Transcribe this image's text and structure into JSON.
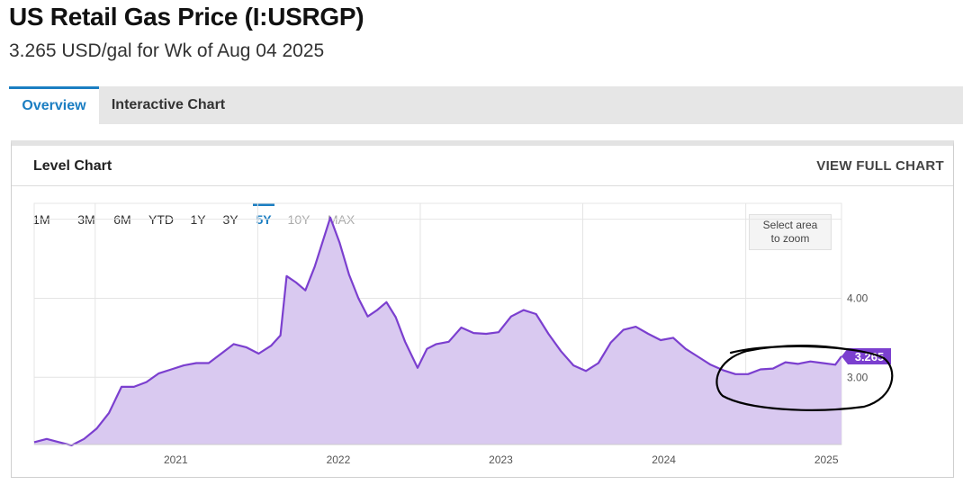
{
  "header": {
    "title": "US Retail Gas Price (I:USRGP)",
    "subtitle": "3.265 USD/gal for Wk of Aug 04 2025"
  },
  "tabs": [
    {
      "label": "Overview",
      "active": true
    },
    {
      "label": "Interactive Chart",
      "active": false
    }
  ],
  "card": {
    "title": "Level Chart",
    "full_chart_label": "VIEW FULL CHART"
  },
  "ranges": [
    {
      "label": "1M",
      "state": "normal"
    },
    {
      "label": "3M",
      "state": "normal"
    },
    {
      "label": "6M",
      "state": "normal"
    },
    {
      "label": "YTD",
      "state": "normal"
    },
    {
      "label": "1Y",
      "state": "normal"
    },
    {
      "label": "3Y",
      "state": "normal"
    },
    {
      "label": "5Y",
      "state": "active"
    },
    {
      "label": "10Y",
      "state": "disabled"
    },
    {
      "label": "MAX",
      "state": "disabled"
    }
  ],
  "zoom_hint": {
    "line1": "Select area",
    "line2": "to zoom"
  },
  "colors": {
    "accent": "#1b7ec2",
    "series_line": "#7b3fcf",
    "series_fill": "#d9c9f0",
    "badge": "#7b3fcf",
    "annotation": "#000000"
  },
  "chart_data": {
    "type": "area",
    "title": "",
    "xlabel": "",
    "ylabel": "",
    "x_ticks": [
      "2021",
      "2022",
      "2023",
      "2024",
      "2025"
    ],
    "y_ticks": [
      {
        "label": "4.00",
        "value": 4.0
      },
      {
        "label": "3.00",
        "value": 3.0
      }
    ],
    "xlim": [
      "2020-08-17",
      "2025-08-04"
    ],
    "ylim": [
      2.15,
      5.2
    ],
    "grid": true,
    "last_value_label": "3.265",
    "series": [
      {
        "x": [
          "2020-08-17",
          "2020-09-14",
          "2020-10-12",
          "2020-11-09",
          "2020-12-07",
          "2021-01-04",
          "2021-02-01",
          "2021-03-01",
          "2021-03-29",
          "2021-04-26",
          "2021-05-24",
          "2021-06-21",
          "2021-07-19",
          "2021-08-16",
          "2021-09-13",
          "2021-10-11",
          "2021-11-08",
          "2021-12-06",
          "2022-01-03",
          "2022-01-31",
          "2022-02-21",
          "2022-03-07",
          "2022-03-28",
          "2022-04-18",
          "2022-05-09",
          "2022-06-13",
          "2022-07-04",
          "2022-07-25",
          "2022-08-15",
          "2022-09-05",
          "2022-09-26",
          "2022-10-17",
          "2022-11-07",
          "2022-11-28",
          "2022-12-26",
          "2023-01-16",
          "2023-02-06",
          "2023-03-06",
          "2023-04-03",
          "2023-05-01",
          "2023-05-29",
          "2023-06-26",
          "2023-07-24",
          "2023-08-21",
          "2023-09-18",
          "2023-10-16",
          "2023-11-13",
          "2023-12-11",
          "2024-01-08",
          "2024-02-05",
          "2024-03-04",
          "2024-04-01",
          "2024-04-29",
          "2024-05-27",
          "2024-06-24",
          "2024-07-22",
          "2024-08-19",
          "2024-09-16",
          "2024-10-14",
          "2024-11-11",
          "2024-12-09",
          "2025-01-06",
          "2025-02-03",
          "2025-03-03",
          "2025-03-31",
          "2025-04-28",
          "2025-05-26",
          "2025-06-23",
          "2025-07-21",
          "2025-08-04"
        ],
        "values": [
          2.18,
          2.22,
          2.18,
          2.14,
          2.22,
          2.35,
          2.55,
          2.88,
          2.88,
          2.94,
          3.05,
          3.1,
          3.15,
          3.18,
          3.18,
          3.3,
          3.42,
          3.38,
          3.3,
          3.4,
          3.53,
          4.28,
          4.2,
          4.1,
          4.4,
          5.02,
          4.7,
          4.3,
          4.0,
          3.77,
          3.85,
          3.95,
          3.76,
          3.45,
          3.12,
          3.36,
          3.42,
          3.45,
          3.63,
          3.56,
          3.55,
          3.57,
          3.77,
          3.85,
          3.8,
          3.55,
          3.33,
          3.15,
          3.08,
          3.18,
          3.44,
          3.6,
          3.64,
          3.55,
          3.47,
          3.5,
          3.36,
          3.26,
          3.16,
          3.09,
          3.04,
          3.04,
          3.1,
          3.11,
          3.19,
          3.17,
          3.2,
          3.18,
          3.16,
          3.265
        ]
      }
    ]
  }
}
